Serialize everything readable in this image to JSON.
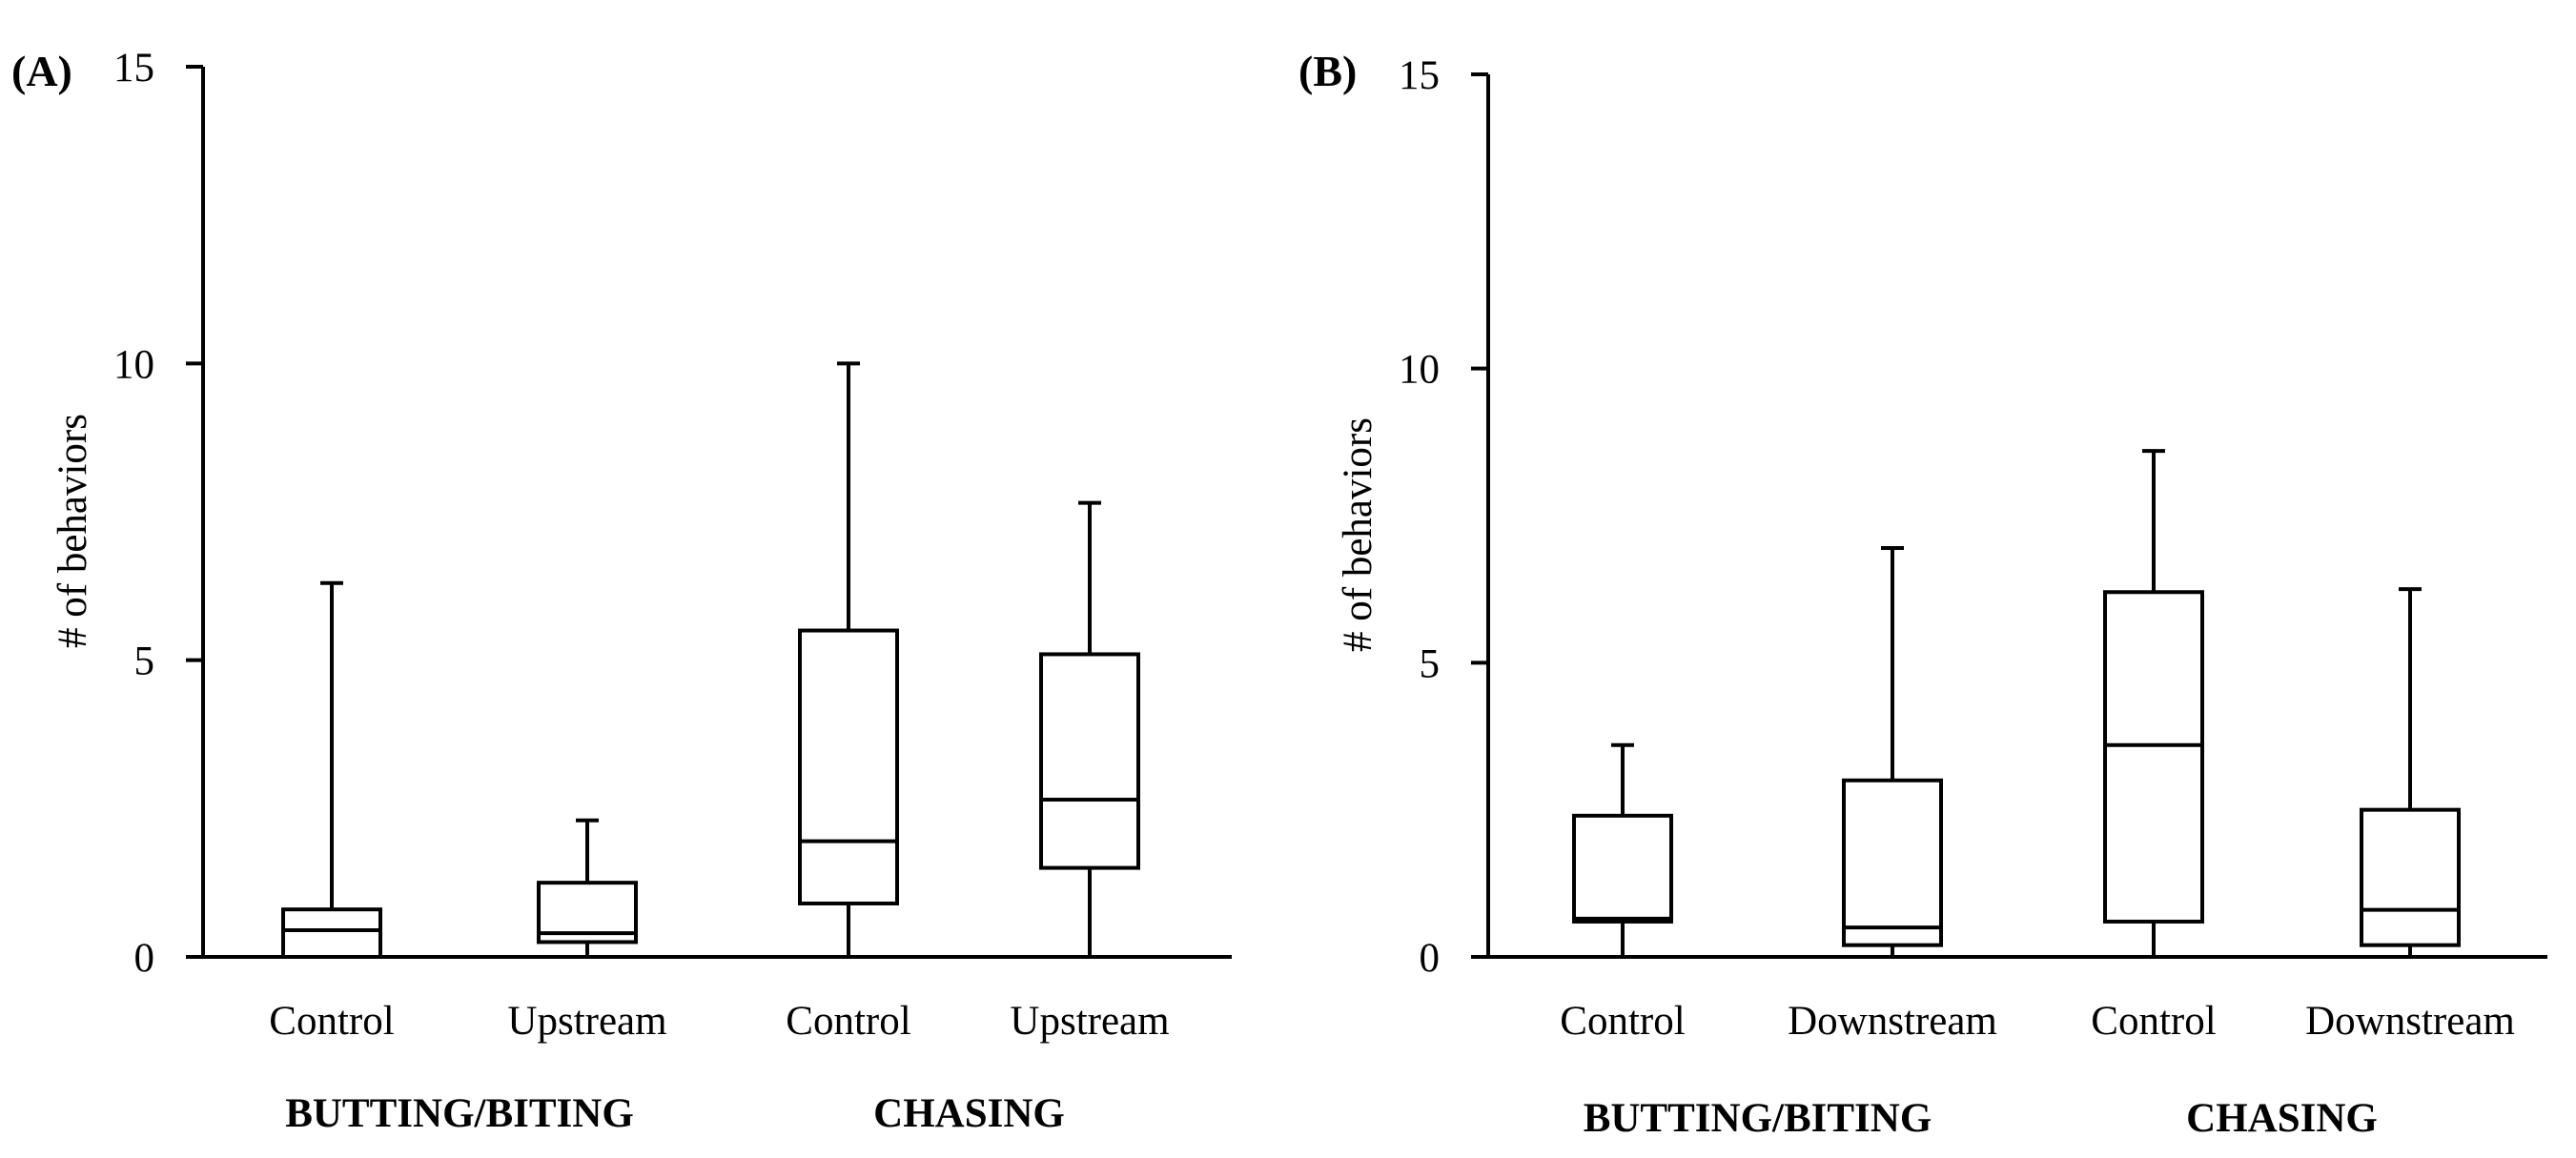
{
  "chart_data": [
    {
      "type": "box",
      "panel_label": "(A)",
      "ylabel": "# of behaviors",
      "ylim": [
        0,
        15
      ],
      "yticks": [
        0,
        5,
        10,
        15
      ],
      "categories": [
        "Control",
        "Upstream",
        "Control",
        "Upstream"
      ],
      "groups": [
        {
          "label": "BUTTING/BITING",
          "categories": [
            0,
            1
          ]
        },
        {
          "label": "CHASING",
          "categories": [
            2,
            3
          ]
        }
      ],
      "boxes": [
        {
          "min": 0,
          "q1": 0,
          "median": 0.45,
          "q3": 0.8,
          "max": 6.3
        },
        {
          "min": 0,
          "q1": 0.25,
          "median": 0.4,
          "q3": 1.25,
          "max": 2.3
        },
        {
          "min": 0,
          "q1": 0.9,
          "median": 1.95,
          "q3": 5.5,
          "max": 10
        },
        {
          "min": 0,
          "q1": 1.5,
          "median": 2.65,
          "q3": 5.1,
          "max": 7.65
        }
      ]
    },
    {
      "type": "box",
      "panel_label": "(B)",
      "ylabel": "# of behaviors",
      "ylim": [
        0,
        15
      ],
      "yticks": [
        0,
        5,
        10,
        15
      ],
      "categories": [
        "Control",
        "Downstream",
        "Control",
        "Downstream"
      ],
      "groups": [
        {
          "label": "BUTTING/BITING",
          "categories": [
            0,
            1
          ]
        },
        {
          "label": "CHASING",
          "categories": [
            2,
            3
          ]
        }
      ],
      "boxes": [
        {
          "min": 0,
          "q1": 0.6,
          "median": 0.65,
          "q3": 2.4,
          "max": 3.6
        },
        {
          "min": 0,
          "q1": 0.2,
          "median": 0.5,
          "q3": 3.0,
          "max": 6.95
        },
        {
          "min": 0,
          "q1": 0.6,
          "median": 3.6,
          "q3": 6.2,
          "max": 8.6
        },
        {
          "min": 0,
          "q1": 0.2,
          "median": 0.8,
          "q3": 2.5,
          "max": 6.25
        }
      ]
    }
  ]
}
